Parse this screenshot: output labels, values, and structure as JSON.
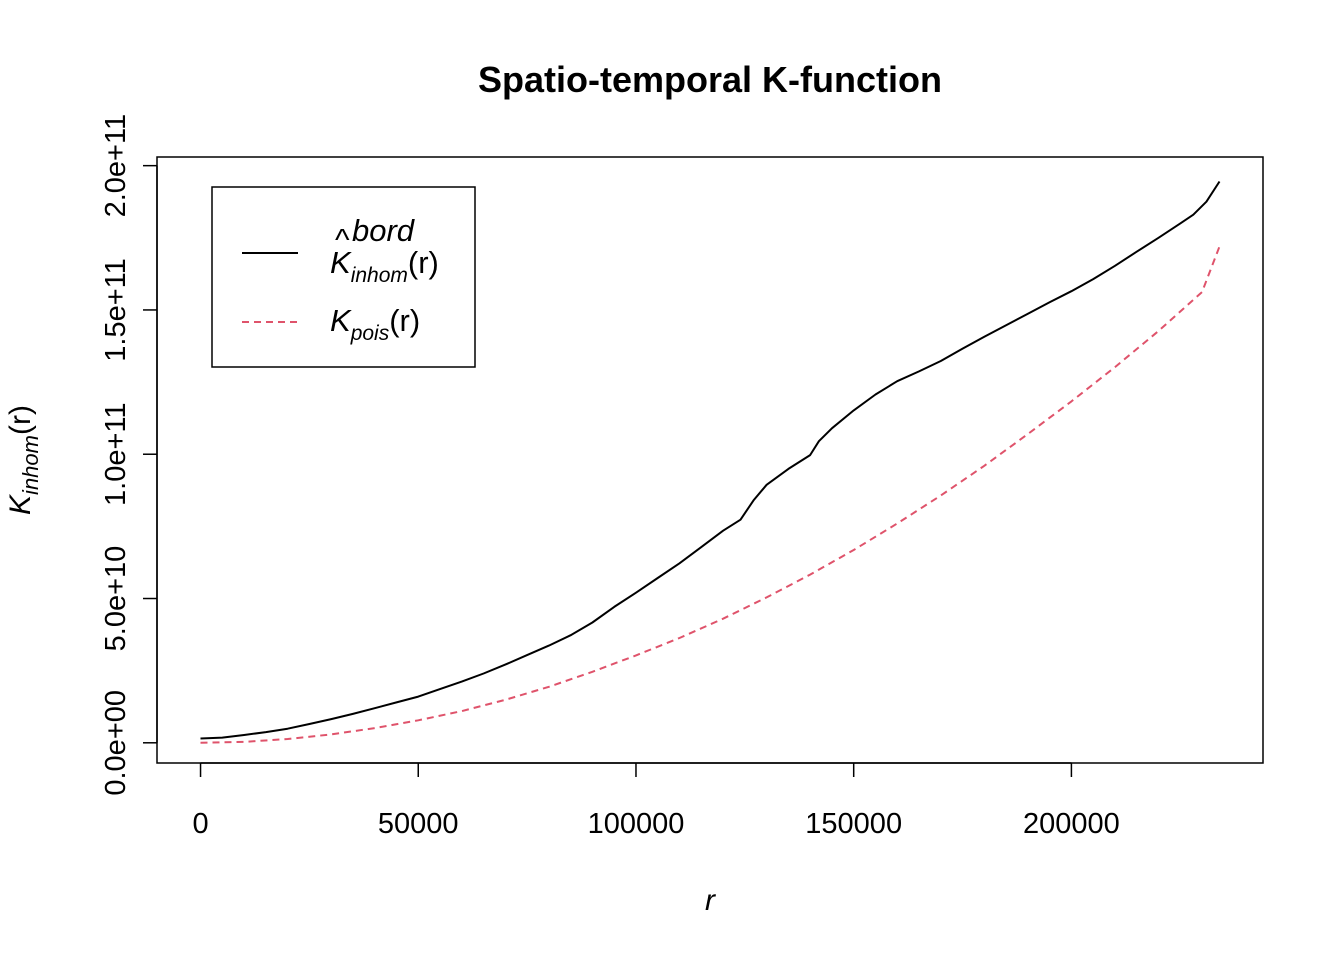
{
  "chart_data": {
    "type": "line",
    "title": "Spatio-temporal K-function",
    "xlabel": {
      "main": "r"
    },
    "ylabel": {
      "main": "K",
      "sub": "inhom",
      "arg": "(r)"
    },
    "xlim": [
      -10000,
      244000
    ],
    "ylim": [
      -7000000000,
      203000000000
    ],
    "x_ticks": [
      0,
      50000,
      100000,
      150000,
      200000
    ],
    "x_tick_labels": [
      "0",
      "50000",
      "100000",
      "150000",
      "200000"
    ],
    "y_ticks": [
      0,
      50000000000,
      100000000000,
      150000000000,
      200000000000
    ],
    "y_tick_labels": [
      "0.0e+00",
      "5.0e+10",
      "1.0e+11",
      "1.5e+11",
      "2.0e+11"
    ],
    "grid": false,
    "legend_position": "top-left",
    "series": [
      {
        "name": "K̂ bord inhom (r)",
        "legend": {
          "main": "K",
          "hat": "^",
          "sup": "bord",
          "sub": "inhom",
          "arg": "(r)"
        },
        "color": "#000000",
        "dash": "solid",
        "x": [
          0,
          5000,
          10000,
          15000,
          20000,
          25000,
          30000,
          35000,
          40000,
          45000,
          50000,
          55000,
          60000,
          65000,
          70000,
          75000,
          80000,
          85000,
          90000,
          95000,
          100000,
          105000,
          110000,
          115000,
          120000,
          124000,
          127000,
          130000,
          135000,
          140000,
          142000,
          145000,
          150000,
          155000,
          160000,
          165000,
          170000,
          175000,
          180000,
          185000,
          190000,
          195000,
          200000,
          205000,
          210000,
          215000,
          220000,
          225000,
          228000,
          231000,
          234000
        ],
        "y": [
          1500000000,
          1800000000,
          2700000000,
          3700000000,
          4900000000,
          6500000000,
          8200000000,
          10000000000,
          12000000000,
          14000000000,
          16000000000,
          18600000000,
          21200000000,
          24000000000,
          27100000000,
          30400000000,
          33700000000,
          37300000000,
          41700000000,
          47100000000,
          52000000000,
          57100000000,
          62200000000,
          67800000000,
          73500000000,
          77300000000,
          84000000000,
          89400000000,
          94900000000,
          99700000000,
          104500000000,
          109000000000,
          115200000000,
          120700000000,
          125300000000,
          128700000000,
          132300000000,
          136600000000,
          140700000000,
          144700000000,
          148700000000,
          152700000000,
          156500000000,
          160700000000,
          165300000000,
          170200000000,
          175000000000,
          180000000000,
          183000000000,
          187500000000,
          194500000000
        ]
      },
      {
        "name": "K pois (r)",
        "legend": {
          "main": "K",
          "sub": "pois",
          "arg": "(r)"
        },
        "color": "#df536b",
        "dash": "dashed",
        "x": [
          0,
          10000,
          20000,
          30000,
          40000,
          50000,
          60000,
          70000,
          80000,
          90000,
          100000,
          110000,
          120000,
          130000,
          140000,
          150000,
          160000,
          170000,
          180000,
          190000,
          200000,
          210000,
          220000,
          230000,
          234000
        ],
        "y": [
          0,
          300000000,
          1300000000,
          2900000000,
          5100000000,
          7800000000,
          11000000000,
          14900000000,
          19400000000,
          24600000000,
          30300000000,
          36300000000,
          43000000000,
          50400000000,
          58300000000,
          66800000000,
          76000000000,
          85700000000,
          96000000000,
          107000000000,
          118300000000,
          130200000000,
          142700000000,
          156200000000,
          172000000000
        ]
      }
    ]
  }
}
